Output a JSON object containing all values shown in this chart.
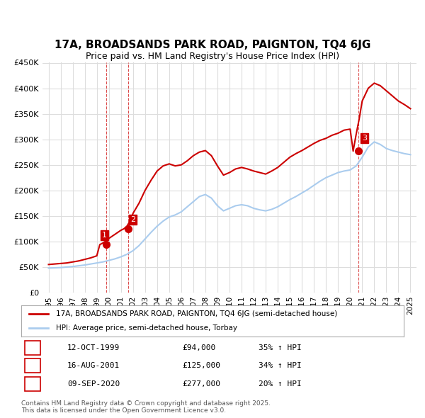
{
  "title": "17A, BROADSANDS PARK ROAD, PAIGNTON, TQ4 6JG",
  "subtitle": "Price paid vs. HM Land Registry's House Price Index (HPI)",
  "ylabel": "",
  "ylim": [
    0,
    450000
  ],
  "yticks": [
    0,
    50000,
    100000,
    150000,
    200000,
    250000,
    300000,
    350000,
    400000,
    450000
  ],
  "ytick_labels": [
    "£0",
    "£50K",
    "£100K",
    "£150K",
    "£200K",
    "£250K",
    "£300K",
    "£350K",
    "£400K",
    "£450K"
  ],
  "background_color": "#ffffff",
  "plot_bg_color": "#ffffff",
  "grid_color": "#dddddd",
  "line1_color": "#cc0000",
  "line2_color": "#aaccee",
  "purchase_color": "#cc0000",
  "legend1_label": "17A, BROADSANDS PARK ROAD, PAIGNTON, TQ4 6JG (semi-detached house)",
  "legend2_label": "HPI: Average price, semi-detached house, Torbay",
  "transactions": [
    {
      "num": 1,
      "date": "12-OCT-1999",
      "price": 94000,
      "pct": "35%",
      "dir": "↑"
    },
    {
      "num": 2,
      "date": "16-AUG-2001",
      "price": 125000,
      "pct": "34%",
      "dir": "↑"
    },
    {
      "num": 3,
      "date": "09-SEP-2020",
      "price": 277000,
      "pct": "20%",
      "dir": "↑"
    }
  ],
  "footer": "Contains HM Land Registry data © Crown copyright and database right 2025.\nThis data is licensed under the Open Government Licence v3.0.",
  "hpi_years": [
    1995,
    1995.5,
    1996,
    1996.5,
    1997,
    1997.5,
    1998,
    1998.5,
    1999,
    1999.5,
    2000,
    2000.5,
    2001,
    2001.5,
    2002,
    2002.5,
    2003,
    2003.5,
    2004,
    2004.5,
    2005,
    2005.5,
    2006,
    2006.5,
    2007,
    2007.5,
    2008,
    2008.5,
    2009,
    2009.5,
    2010,
    2010.5,
    2011,
    2011.5,
    2012,
    2012.5,
    2013,
    2013.5,
    2014,
    2014.5,
    2015,
    2015.5,
    2016,
    2016.5,
    2017,
    2017.5,
    2018,
    2018.5,
    2019,
    2019.5,
    2020,
    2020.5,
    2021,
    2021.5,
    2022,
    2022.5,
    2023,
    2023.5,
    2024,
    2024.5,
    2025
  ],
  "hpi_values": [
    48000,
    48500,
    49000,
    50000,
    51000,
    52500,
    54000,
    56000,
    58000,
    60000,
    63000,
    66000,
    70000,
    75000,
    82000,
    92000,
    105000,
    118000,
    130000,
    140000,
    148000,
    152000,
    158000,
    168000,
    178000,
    188000,
    192000,
    185000,
    170000,
    160000,
    165000,
    170000,
    172000,
    170000,
    165000,
    162000,
    160000,
    163000,
    168000,
    175000,
    182000,
    188000,
    195000,
    202000,
    210000,
    218000,
    225000,
    230000,
    235000,
    238000,
    240000,
    248000,
    265000,
    285000,
    295000,
    290000,
    282000,
    278000,
    275000,
    272000,
    270000
  ],
  "property_years": [
    1995,
    1995.5,
    1996,
    1996.5,
    1997,
    1997.5,
    1998,
    1998.5,
    1999,
    1999.25,
    1999.5,
    1999.75,
    2000,
    2000.5,
    2001,
    2001.25,
    2001.5,
    2001.75,
    2002,
    2002.5,
    2003,
    2003.5,
    2004,
    2004.5,
    2005,
    2005.5,
    2006,
    2006.5,
    2007,
    2007.5,
    2008,
    2008.5,
    2009,
    2009.5,
    2010,
    2010.5,
    2011,
    2011.5,
    2012,
    2012.5,
    2013,
    2013.5,
    2014,
    2014.5,
    2015,
    2015.5,
    2016,
    2016.5,
    2017,
    2017.5,
    2018,
    2018.5,
    2019,
    2019.5,
    2020,
    2020.25,
    2020.5,
    2020.75,
    2021,
    2021.5,
    2022,
    2022.5,
    2023,
    2023.5,
    2024,
    2024.5,
    2025
  ],
  "property_values": [
    55000,
    56000,
    57000,
    58000,
    60000,
    62000,
    65000,
    68000,
    72000,
    94000,
    97000,
    101000,
    106000,
    114000,
    122000,
    125000,
    130000,
    140000,
    155000,
    175000,
    200000,
    220000,
    238000,
    248000,
    252000,
    248000,
    250000,
    258000,
    268000,
    275000,
    278000,
    268000,
    248000,
    230000,
    235000,
    242000,
    245000,
    242000,
    238000,
    235000,
    232000,
    238000,
    245000,
    255000,
    265000,
    272000,
    278000,
    285000,
    292000,
    298000,
    302000,
    308000,
    312000,
    318000,
    320000,
    277000,
    310000,
    340000,
    375000,
    400000,
    410000,
    405000,
    395000,
    385000,
    375000,
    368000,
    360000
  ],
  "xtick_years": [
    1995,
    1996,
    1997,
    1998,
    1999,
    2000,
    2001,
    2002,
    2003,
    2004,
    2005,
    2006,
    2007,
    2008,
    2009,
    2010,
    2011,
    2012,
    2013,
    2014,
    2015,
    2016,
    2017,
    2018,
    2019,
    2020,
    2021,
    2022,
    2023,
    2024,
    2025
  ],
  "xlim": [
    1994.5,
    2025.5
  ]
}
